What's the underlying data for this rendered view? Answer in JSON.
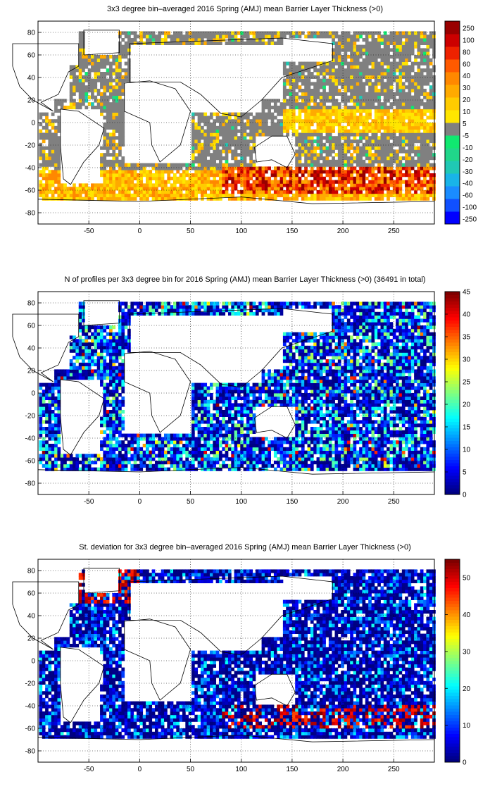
{
  "panels": [
    {
      "title": "3x3 degree bin–averaged 2016 Spring (AMJ) mean Barrier Layer Thickness (>0)",
      "colorbar_ticks": [
        "250",
        "100",
        "80",
        "60",
        "40",
        "30",
        "20",
        "10",
        "5",
        "-5",
        "-10",
        "-20",
        "-30",
        "-40",
        "-60",
        "-100",
        "-250"
      ]
    },
    {
      "title": "N of profiles per 3x3 degree bin for 2016 Spring (AMJ) mean Barrier Layer Thickness (>0) (36491 in total)",
      "colorbar_ticks": [
        "45",
        "40",
        "35",
        "30",
        "25",
        "20",
        "15",
        "10",
        "5",
        "0"
      ]
    },
    {
      "title": "St. deviation for 3x3 degree bin–averaged 2016 Spring (AMJ) mean Barrier Layer Thickness (>0)",
      "colorbar_ticks": [
        "50",
        "40",
        "30",
        "20",
        "10",
        "0"
      ]
    }
  ],
  "chart_data": [
    {
      "type": "heatmap",
      "title": "3x3 degree bin–averaged 2016 Spring (AMJ) mean Barrier Layer Thickness (>0)",
      "x_ticks": [
        "-50",
        "0",
        "50",
        "100",
        "150",
        "200",
        "250"
      ],
      "y_ticks": [
        "80",
        "60",
        "40",
        "20",
        "0",
        "-20",
        "-40",
        "-60",
        "-80"
      ],
      "xlim": [
        -100,
        290
      ],
      "ylim": [
        -90,
        90
      ],
      "grid": true,
      "colorbar": {
        "levels": [
          -250,
          -100,
          -60,
          -40,
          -30,
          -20,
          -10,
          -5,
          5,
          10,
          20,
          30,
          40,
          60,
          80,
          100,
          250
        ],
        "colors": [
          "#0000ff",
          "#1050ff",
          "#1a8cff",
          "#19b4e8",
          "#20c8b4",
          "#20d68a",
          "#10e870",
          "#808080",
          "#ffe600",
          "#ffcc00",
          "#ffaa00",
          "#ff8800",
          "#ff5a00",
          "#ee2200",
          "#cc0000",
          "#990000"
        ]
      },
      "field": "mean barrier layer thickness (m)",
      "notable_features": [
        "thick layers (>60) along Southern Ocean band 40S-60S, 90E-260E",
        "yellow equatorial band in Pacific",
        "grey (<5) covering most subtropical ocean"
      ]
    },
    {
      "type": "heatmap",
      "title": "N of profiles per 3x3 degree bin for 2016 Spring (AMJ) mean Barrier Layer Thickness (>0) (36491 in total)",
      "x_ticks": [
        "-50",
        "0",
        "50",
        "100",
        "150",
        "200",
        "250"
      ],
      "y_ticks": [
        "80",
        "60",
        "40",
        "20",
        "0",
        "-20",
        "-40",
        "-60",
        "-80"
      ],
      "xlim": [
        -100,
        290
      ],
      "ylim": [
        -90,
        90
      ],
      "grid": true,
      "colorbar": {
        "min": 0,
        "max": 45,
        "colormap": "jet"
      },
      "total_profiles": 36491
    },
    {
      "type": "heatmap",
      "title": "St. deviation for 3x3 degree bin–averaged 2016 Spring (AMJ) mean Barrier Layer Thickness (>0)",
      "x_ticks": [
        "-50",
        "0",
        "50",
        "100",
        "150",
        "200",
        "250"
      ],
      "y_ticks": [
        "80",
        "60",
        "40",
        "20",
        "0",
        "-20",
        "-40",
        "-60",
        "-80"
      ],
      "xlim": [
        -100,
        290
      ],
      "ylim": [
        -90,
        90
      ],
      "grid": true,
      "colorbar": {
        "min": 0,
        "max": 55,
        "colormap": "jet"
      }
    }
  ]
}
